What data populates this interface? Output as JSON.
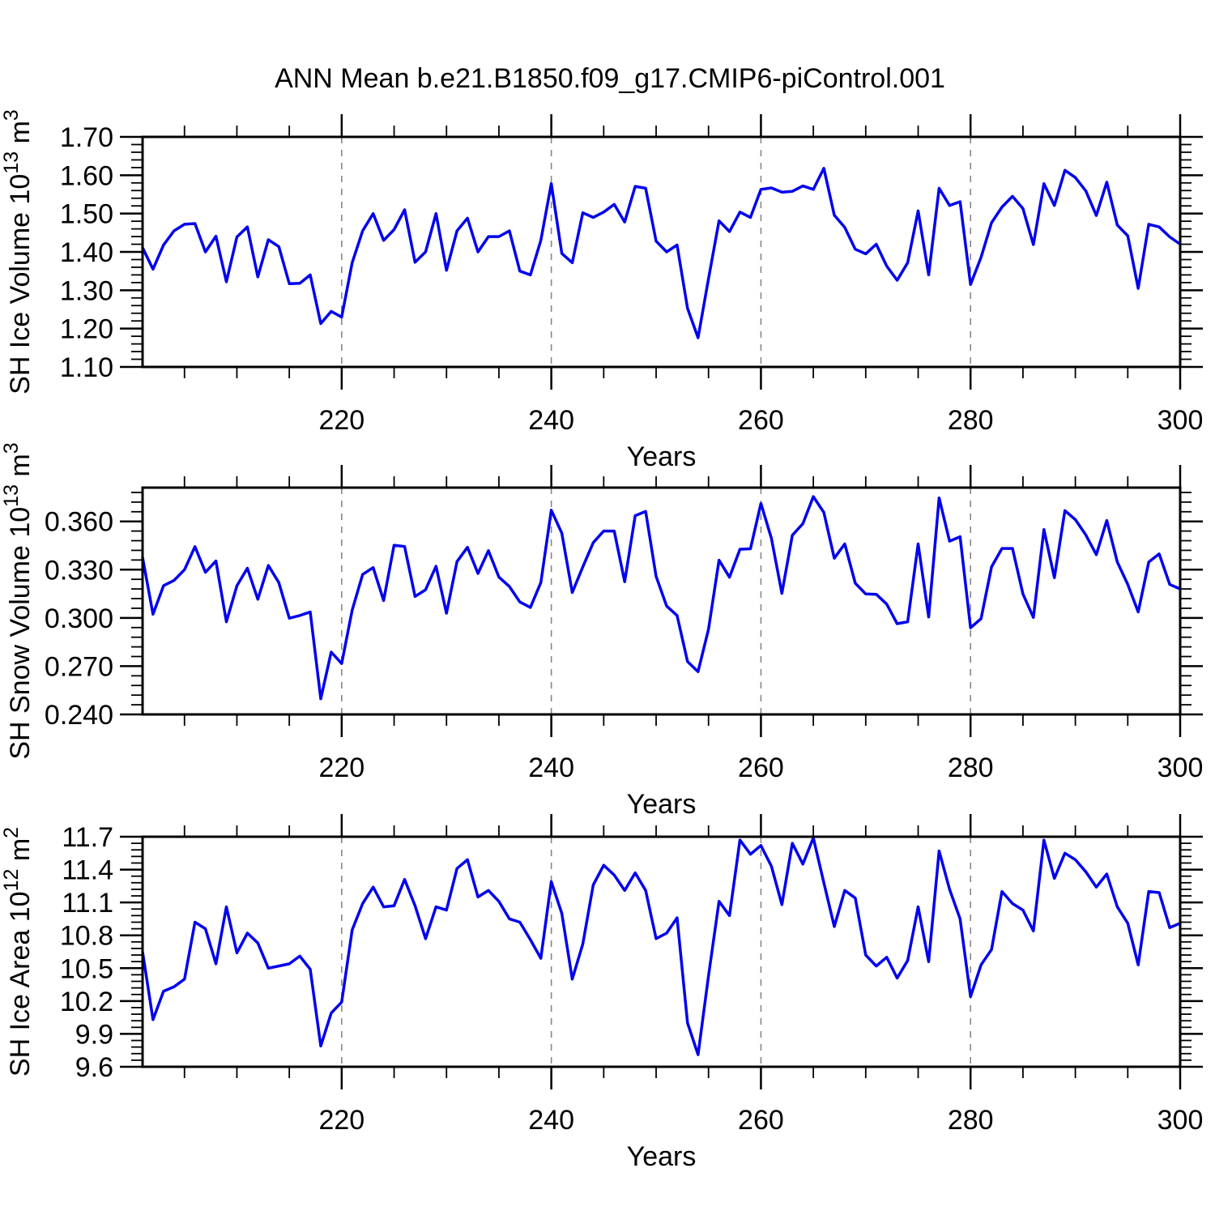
{
  "title": "ANN Mean b.e21.B1850.f09_g17.CMIP6-piControl.001",
  "colors": {
    "line": "#0000ee",
    "grid": "#878787",
    "axis": "#000000"
  },
  "chart_data": {
    "type": "line",
    "title": "ANN Mean b.e21.B1850.f09_g17.CMIP6-piControl.001",
    "xlabel": "Years",
    "legend": "none",
    "grid": "dashed vertical lines at major x ticks",
    "x_range": [
      201,
      300
    ],
    "x_major_ticks": [
      220,
      240,
      260,
      280,
      300
    ],
    "x_minor_step": 5,
    "years": [
      201,
      202,
      203,
      204,
      205,
      206,
      207,
      208,
      209,
      210,
      211,
      212,
      213,
      214,
      215,
      216,
      217,
      218,
      219,
      220,
      221,
      222,
      223,
      224,
      225,
      226,
      227,
      228,
      229,
      230,
      231,
      232,
      233,
      234,
      235,
      236,
      237,
      238,
      239,
      240,
      241,
      242,
      243,
      244,
      245,
      246,
      247,
      248,
      249,
      250,
      251,
      252,
      253,
      254,
      255,
      256,
      257,
      258,
      259,
      260,
      261,
      262,
      263,
      264,
      265,
      266,
      267,
      268,
      269,
      270,
      271,
      272,
      273,
      274,
      275,
      276,
      277,
      278,
      279,
      280,
      281,
      282,
      283,
      284,
      285,
      286,
      287,
      288,
      289,
      290,
      291,
      292,
      293,
      294,
      295,
      296,
      297,
      298,
      299,
      300
    ],
    "panels": [
      {
        "name": "sh-ice-volume",
        "ylabel_text": "SH Ice Volume 10^13 m^3",
        "ylabel_parts": {
          "pre": "SH Ice Volume 10",
          "sup1": "13",
          "mid": " m",
          "sup2": "3"
        },
        "y_range": [
          1.1,
          1.7
        ],
        "y_minor_step": 0.02,
        "y_ticks": [
          {
            "v": 1.1,
            "label": "1.10"
          },
          {
            "v": 1.2,
            "label": "1.20"
          },
          {
            "v": 1.3,
            "label": "1.30"
          },
          {
            "v": 1.4,
            "label": "1.40"
          },
          {
            "v": 1.5,
            "label": "1.50"
          },
          {
            "v": 1.6,
            "label": "1.60"
          },
          {
            "v": 1.7,
            "label": "1.70"
          }
        ],
        "values": [
          1.411,
          1.355,
          1.418,
          1.455,
          1.472,
          1.474,
          1.4,
          1.441,
          1.322,
          1.439,
          1.465,
          1.335,
          1.432,
          1.414,
          1.317,
          1.318,
          1.34,
          1.213,
          1.245,
          1.23,
          1.372,
          1.455,
          1.5,
          1.43,
          1.458,
          1.51,
          1.373,
          1.4,
          1.5,
          1.352,
          1.455,
          1.488,
          1.4,
          1.44,
          1.44,
          1.455,
          1.35,
          1.34,
          1.43,
          1.578,
          1.396,
          1.372,
          1.502,
          1.49,
          1.504,
          1.524,
          1.478,
          1.571,
          1.566,
          1.428,
          1.4,
          1.418,
          1.253,
          1.176,
          1.33,
          1.481,
          1.453,
          1.504,
          1.49,
          1.563,
          1.567,
          1.556,
          1.558,
          1.572,
          1.563,
          1.618,
          1.496,
          1.464,
          1.407,
          1.395,
          1.42,
          1.363,
          1.326,
          1.372,
          1.507,
          1.34,
          1.566,
          1.521,
          1.531,
          1.315,
          1.386,
          1.476,
          1.517,
          1.545,
          1.513,
          1.419,
          1.578,
          1.521,
          1.613,
          1.594,
          1.559,
          1.495,
          1.582,
          1.47,
          1.442,
          1.305,
          1.472,
          1.465,
          1.439,
          1.42
        ]
      },
      {
        "name": "sh-snow-volume",
        "ylabel_text": "SH Snow Volume 10^13 m^3",
        "ylabel_parts": {
          "pre": "SH Snow Volume 10",
          "sup1": "13",
          "mid": " m",
          "sup2": "3"
        },
        "y_range": [
          0.24,
          0.381
        ],
        "y_minor_step": 0.006,
        "y_ticks": [
          {
            "v": 0.24,
            "label": "0.240"
          },
          {
            "v": 0.27,
            "label": "0.270"
          },
          {
            "v": 0.3,
            "label": "0.300"
          },
          {
            "v": 0.33,
            "label": "0.330"
          },
          {
            "v": 0.36,
            "label": "0.360"
          }
        ],
        "values": [
          0.3376,
          0.3023,
          0.32,
          0.3233,
          0.33,
          0.3443,
          0.3284,
          0.3354,
          0.2976,
          0.32,
          0.3309,
          0.3116,
          0.3326,
          0.322,
          0.2998,
          0.3015,
          0.3037,
          0.2497,
          0.2788,
          0.2716,
          0.3048,
          0.327,
          0.3313,
          0.3108,
          0.3452,
          0.3444,
          0.3133,
          0.3175,
          0.3321,
          0.3029,
          0.335,
          0.3439,
          0.3276,
          0.3418,
          0.3254,
          0.3195,
          0.3099,
          0.3065,
          0.322,
          0.367,
          0.3527,
          0.3158,
          0.3317,
          0.3468,
          0.354,
          0.354,
          0.3225,
          0.3636,
          0.3662,
          0.3258,
          0.3074,
          0.3015,
          0.2729,
          0.2666,
          0.293,
          0.3359,
          0.3253,
          0.3427,
          0.343,
          0.3712,
          0.3494,
          0.3153,
          0.3514,
          0.3586,
          0.3754,
          0.3656,
          0.3371,
          0.346,
          0.3216,
          0.3149,
          0.3147,
          0.3086,
          0.2964,
          0.2976,
          0.346,
          0.3006,
          0.3746,
          0.3477,
          0.3505,
          0.2939,
          0.2995,
          0.3317,
          0.3432,
          0.3432,
          0.3149,
          0.3003,
          0.3549,
          0.325,
          0.3667,
          0.3611,
          0.3516,
          0.3393,
          0.3606,
          0.3347,
          0.3208,
          0.3037,
          0.3347,
          0.3398,
          0.3208,
          0.318
        ]
      },
      {
        "name": "sh-ice-area",
        "ylabel_text": "SH Ice Area 10^12 m^2",
        "ylabel_parts": {
          "pre": "SH Ice Area 10",
          "sup1": "12",
          "mid": " m",
          "sup2": "2"
        },
        "y_range": [
          9.6,
          11.7
        ],
        "y_minor_step": 0.06,
        "y_ticks": [
          {
            "v": 9.6,
            "label": "9.6"
          },
          {
            "v": 9.9,
            "label": "9.9"
          },
          {
            "v": 10.2,
            "label": "10.2"
          },
          {
            "v": 10.5,
            "label": "10.5"
          },
          {
            "v": 10.8,
            "label": "10.8"
          },
          {
            "v": 11.1,
            "label": "11.1"
          },
          {
            "v": 11.4,
            "label": "11.4"
          },
          {
            "v": 11.7,
            "label": "11.7"
          }
        ],
        "values": [
          10.65,
          10.03,
          10.29,
          10.33,
          10.4,
          10.92,
          10.86,
          10.54,
          11.06,
          10.64,
          10.82,
          10.73,
          10.5,
          10.52,
          10.54,
          10.61,
          10.49,
          9.79,
          10.09,
          10.19,
          10.85,
          11.09,
          11.24,
          11.06,
          11.07,
          11.31,
          11.07,
          10.77,
          11.06,
          11.03,
          11.41,
          11.49,
          11.15,
          11.21,
          11.11,
          10.95,
          10.92,
          10.76,
          10.59,
          11.29,
          11.0,
          10.4,
          10.72,
          11.26,
          11.44,
          11.35,
          11.21,
          11.37,
          11.21,
          10.77,
          10.82,
          10.96,
          10.0,
          9.71,
          10.43,
          11.11,
          10.98,
          11.67,
          11.54,
          11.62,
          11.43,
          11.08,
          11.64,
          11.45,
          11.69,
          11.28,
          10.88,
          11.21,
          11.14,
          10.62,
          10.52,
          10.6,
          10.41,
          10.57,
          11.06,
          10.56,
          11.57,
          11.22,
          10.95,
          10.24,
          10.53,
          10.67,
          11.2,
          11.09,
          11.03,
          10.84,
          11.67,
          11.32,
          11.55,
          11.49,
          11.38,
          11.24,
          11.36,
          11.06,
          10.91,
          10.53,
          11.2,
          11.19,
          10.87,
          10.91
        ]
      }
    ]
  }
}
